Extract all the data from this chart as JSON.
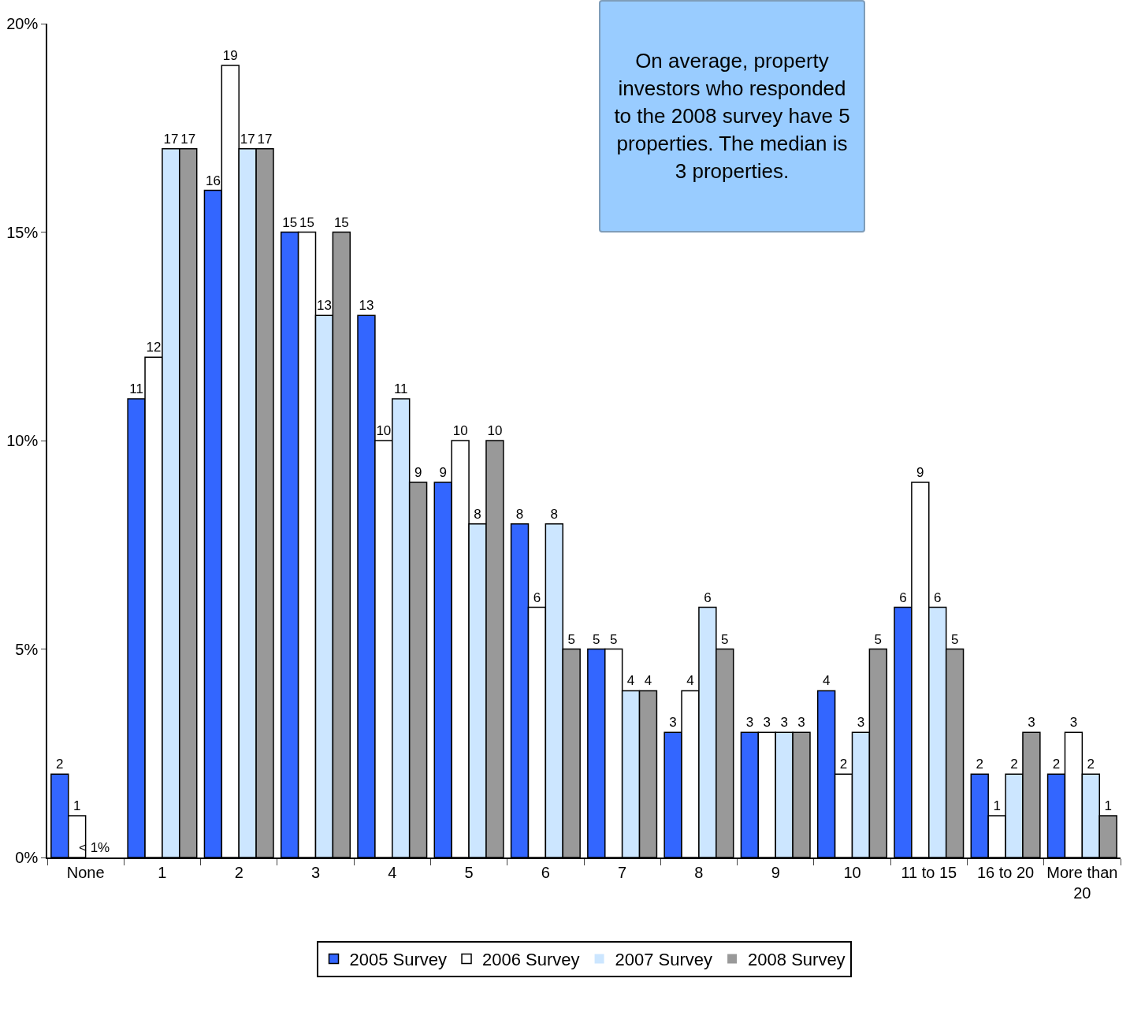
{
  "chart_data": {
    "type": "bar",
    "categories": [
      "None",
      "1",
      "2",
      "3",
      "4",
      "5",
      "6",
      "7",
      "8",
      "9",
      "10",
      "11 to 15",
      "16 to 20",
      "More than 20"
    ],
    "series": [
      {
        "name": "2005 Survey",
        "color": "#3366ff",
        "values": [
          2,
          11,
          16,
          15,
          13,
          9,
          8,
          5,
          3,
          3,
          4,
          6,
          2,
          2
        ],
        "value_labels": [
          "2",
          "11",
          "16",
          "15",
          "13",
          "9",
          "8",
          "5",
          "3",
          "3",
          "4",
          "6",
          "2",
          "2"
        ]
      },
      {
        "name": "2006 Survey",
        "color": "#ffffff",
        "values": [
          1,
          12,
          19,
          15,
          10,
          10,
          6,
          5,
          4,
          3,
          2,
          9,
          1,
          3
        ],
        "value_labels": [
          "1",
          "12",
          "19",
          "15",
          "10",
          "10",
          "6",
          "5",
          "4",
          "3",
          "2",
          "9",
          "1",
          "3"
        ]
      },
      {
        "name": "2007 Survey",
        "color": "#cce6ff",
        "values": [
          0,
          17,
          17,
          13,
          11,
          8,
          8,
          4,
          6,
          3,
          3,
          6,
          2,
          2
        ],
        "value_labels": [
          "< 1%",
          "17",
          "17",
          "13",
          "11",
          "8",
          "8",
          "4",
          "6",
          "3",
          "3",
          "6",
          "2",
          "2"
        ]
      },
      {
        "name": "2008 Survey",
        "color": "#999999",
        "values": [
          null,
          17,
          17,
          15,
          9,
          10,
          5,
          4,
          5,
          3,
          5,
          5,
          3,
          1
        ],
        "value_labels": [
          null,
          "17",
          "17",
          "15",
          "9",
          "10",
          "5",
          "4",
          "5",
          "3",
          "5",
          "5",
          "3",
          "1"
        ]
      }
    ],
    "ylim": [
      0,
      20
    ],
    "yticks": [
      {
        "value": 0,
        "label": "0%"
      },
      {
        "value": 5,
        "label": "5%"
      },
      {
        "value": 10,
        "label": "10%"
      },
      {
        "value": 15,
        "label": "15%"
      },
      {
        "value": 20,
        "label": "20%"
      }
    ],
    "grid": false,
    "legend": "bottom",
    "annotations": [
      "On average, property investors who responded to the 2008 survey have 5 properties. The median is 3 properties."
    ]
  }
}
